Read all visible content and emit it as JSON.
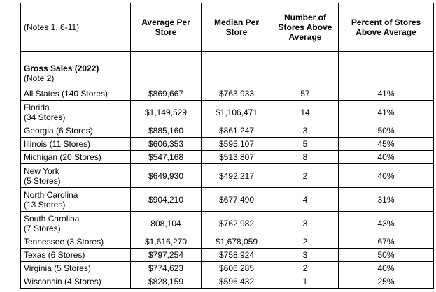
{
  "header": {
    "notes": "(Notes 1, 6-11)",
    "avg": "Average Per Store",
    "median": "Median Per Store",
    "num_above": "Number of Stores Above Average",
    "pct_above": "Percent of Stores Above Average"
  },
  "section": {
    "title": "Gross Sales (2022)",
    "note": "(Note 2)"
  },
  "rows": [
    {
      "l1": "All States (140 Stores)",
      "l2": "",
      "avg": "$869,667",
      "median": "$763,933",
      "num": "57",
      "pct": "41%"
    },
    {
      "l1": "Florida",
      "l2": "(34 Stores)",
      "avg": "$1,149,529",
      "median": "$1,106,471",
      "num": "14",
      "pct": "41%"
    },
    {
      "l1": "Georgia (6 Stores)",
      "l2": "",
      "avg": "$885,160",
      "median": "$861,247",
      "num": "3",
      "pct": "50%"
    },
    {
      "l1": "Illinois (11 Stores)",
      "l2": "",
      "avg": "$606,353",
      "median": "$595,107",
      "num": "5",
      "pct": "45%"
    },
    {
      "l1": "Michigan (20 Stores)",
      "l2": "",
      "avg": "$547,168",
      "median": "$513,807",
      "num": "8",
      "pct": "40%"
    },
    {
      "l1": "New York",
      "l2": "(5 Stores)",
      "avg": "$649,930",
      "median": "$492,217",
      "num": "2",
      "pct": "40%"
    },
    {
      "l1": "North Carolina",
      "l2": "(13 Stores)",
      "avg": "$904,210",
      "median": "$677,490",
      "num": "4",
      "pct": "31%"
    },
    {
      "l1": "South Carolina",
      "l2": "(7 Stores)",
      "avg": "808,104",
      "median": "$762,982",
      "num": "3",
      "pct": "43%"
    },
    {
      "l1": "Tennessee (3 Stores)",
      "l2": "",
      "avg": "$1,616,270",
      "median": "$1,678,059",
      "num": "2",
      "pct": "67%"
    },
    {
      "l1": "Texas (6 Stores)",
      "l2": "",
      "avg": "$797,254",
      "median": "$758,924",
      "num": "3",
      "pct": "50%"
    },
    {
      "l1": "Virginia (5 Stores)",
      "l2": "",
      "avg": "$774,623",
      "median": "$606,285",
      "num": "2",
      "pct": "40%"
    },
    {
      "l1": "Wisconsin (4 Stores)",
      "l2": "",
      "avg": "$828,159",
      "median": "$596,432",
      "num": "1",
      "pct": "25%"
    }
  ]
}
